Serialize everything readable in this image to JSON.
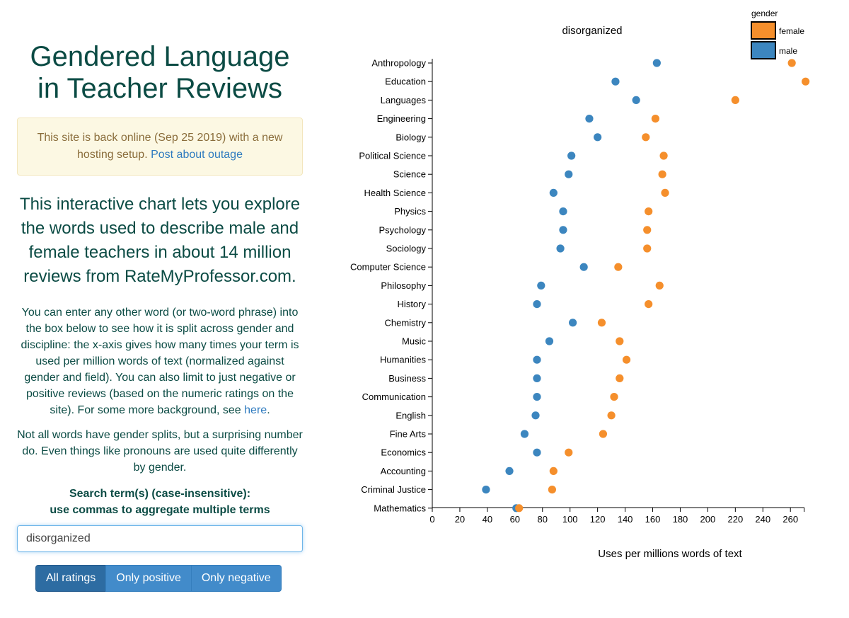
{
  "page": {
    "title": "Gendered Language in Teacher Reviews",
    "alert": {
      "text": "This site is back online (Sep 25 2019) with a new hosting setup.",
      "link": "Post about outage"
    },
    "lead": "This interactive chart lets you explore the words used to describe male and female teachers in about 14 million reviews from RateMyProfessor.com.",
    "para1": "You can enter any other word (or two-word phrase) into the box below to see how it is split across gender and discipline: the x-axis gives how many times your term is used per million words of text (normalized against gender and field). You can also limit to just negative or positive reviews (based on the numeric ratings on the site). For some more background, see",
    "para1_link": "here",
    "para1_end": ".",
    "para2": "Not all words have gender splits, but a surprising number do. Even things like pronouns are used quite differently by gender.",
    "search_label_1": "Search term(s) (case-insensitive):",
    "search_label_2": "use commas to aggregate multiple terms",
    "search_value": "disorganized",
    "buttons": [
      "All ratings",
      "Only positive",
      "Only negative"
    ]
  },
  "colors": {
    "female": "#f58f2c",
    "male": "#3c86bf",
    "text": "#0b4b44"
  },
  "chart_data": {
    "type": "scatter",
    "title": "disorganized",
    "xlabel": "Uses per millions words of text",
    "xlim": [
      0,
      270
    ],
    "xticks": [
      0,
      20,
      40,
      60,
      80,
      100,
      120,
      140,
      160,
      180,
      200,
      220,
      240,
      260
    ],
    "legend_title": "gender",
    "legend_position": "top-right",
    "categories": [
      "Anthropology",
      "Education",
      "Languages",
      "Engineering",
      "Biology",
      "Political Science",
      "Science",
      "Health Science",
      "Physics",
      "Psychology",
      "Sociology",
      "Computer Science",
      "Philosophy",
      "History",
      "Chemistry",
      "Music",
      "Humanities",
      "Business",
      "Communication",
      "English",
      "Fine Arts",
      "Economics",
      "Accounting",
      "Criminal Justice",
      "Mathematics"
    ],
    "series": [
      {
        "name": "female",
        "color": "#f58f2c",
        "values": [
          261,
          271,
          220,
          162,
          155,
          168,
          167,
          169,
          157,
          156,
          156,
          135,
          165,
          157,
          123,
          136,
          141,
          136,
          132,
          130,
          124,
          99,
          88,
          87,
          63
        ]
      },
      {
        "name": "male",
        "color": "#3c86bf",
        "values": [
          163,
          133,
          148,
          114,
          120,
          101,
          99,
          88,
          95,
          95,
          93,
          110,
          79,
          76,
          102,
          85,
          76,
          76,
          76,
          75,
          67,
          76,
          56,
          39,
          61
        ]
      }
    ]
  }
}
